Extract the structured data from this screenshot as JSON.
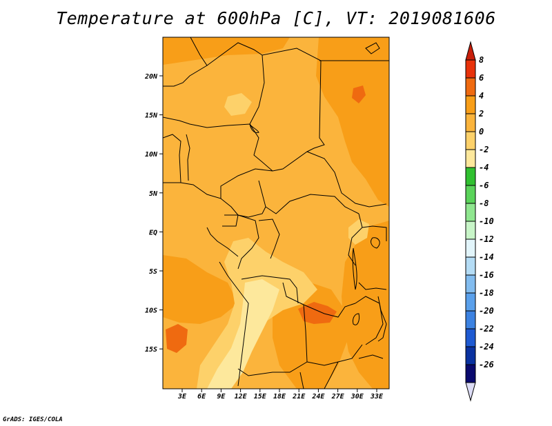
{
  "title": "Temperature at 600hPa [C], VT: 2019081606",
  "credit": "GrADS: IGES/COLA",
  "map": {
    "lat_labels": [
      "20N",
      "15N",
      "10N",
      "5N",
      "EQ",
      "5S",
      "10S",
      "15S"
    ],
    "lon_labels": [
      "3E",
      "6E",
      "9E",
      "12E",
      "15E",
      "18E",
      "21E",
      "24E",
      "27E",
      "30E",
      "33E"
    ],
    "background_color": "#fbb43c",
    "region_colors": {
      "warm_2_4": "#f89e18",
      "warm_4_6": "#ef6a10",
      "mild_0_2": "#fbb43c",
      "cool_m2_0": "#fdd16a",
      "cool_m4_m2": "#fde89c"
    }
  },
  "colorbar": {
    "labels": [
      "8",
      "6",
      "4",
      "2",
      "0",
      "-2",
      "-4",
      "-6",
      "-8",
      "-10",
      "-12",
      "-14",
      "-16",
      "-18",
      "-20",
      "-22",
      "-24",
      "-26"
    ],
    "colors": [
      "#e8320a",
      "#ef6a10",
      "#f89e18",
      "#fbb43c",
      "#fdd16a",
      "#fde89c",
      "#30c030",
      "#5ad35a",
      "#8fe68f",
      "#c8f5c8",
      "#e2f5fb",
      "#b4dcf5",
      "#82bcef",
      "#5aa0eb",
      "#3c82e1",
      "#1e5ad2",
      "#0a32a0",
      "#0a0a6e"
    ],
    "top_arrow_color": "#c81e0a",
    "bottom_arrow_color": "#dcdcf5"
  }
}
